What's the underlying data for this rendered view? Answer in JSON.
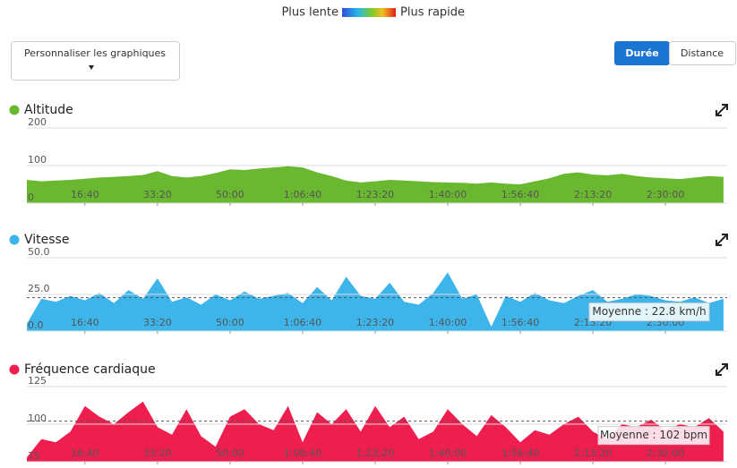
{
  "header": {
    "legend_slow": "Plus lente",
    "legend_fast": "Plus rapide",
    "customize": "Personnaliser les graphiques",
    "tabs": [
      "Durée",
      "Distance"
    ],
    "active_tab": 0
  },
  "chart_data": [
    {
      "type": "area",
      "title": "Altitude",
      "color": "#6ab830",
      "x": [
        200,
        400,
        600,
        800,
        1000,
        1200,
        1400,
        1600,
        1800,
        2000,
        2200,
        2400,
        2600,
        2800,
        3000,
        3200,
        3400,
        3600,
        3800,
        4000,
        4200,
        4400,
        4600,
        4800,
        5000,
        5200,
        5400,
        5600,
        5800,
        6000,
        6200,
        6400,
        6600,
        6800,
        7000,
        7200,
        7400,
        7600,
        7800,
        8000,
        8200,
        8400,
        8600,
        8800,
        9000,
        9200,
        9400,
        9600,
        9800
      ],
      "values": [
        62,
        58,
        60,
        62,
        65,
        68,
        70,
        72,
        75,
        85,
        72,
        68,
        72,
        80,
        90,
        88,
        92,
        95,
        98,
        95,
        82,
        72,
        60,
        55,
        58,
        62,
        60,
        58,
        56,
        55,
        54,
        52,
        55,
        52,
        50,
        58,
        66,
        78,
        82,
        76,
        74,
        78,
        72,
        68,
        66,
        64,
        68,
        72,
        70
      ],
      "xlim": [
        200,
        9850
      ],
      "ylim": [
        0,
        200
      ],
      "yticks": [
        0,
        100,
        200
      ],
      "grid": true,
      "xticks": [
        {
          "value": 1000,
          "label": "16:40"
        },
        {
          "value": 2000,
          "label": "33:20"
        },
        {
          "value": 3000,
          "label": "50:00"
        },
        {
          "value": 4000,
          "label": "1:06:40"
        },
        {
          "value": 5000,
          "label": "1:23:20"
        },
        {
          "value": 6000,
          "label": "1:40:00"
        },
        {
          "value": 7000,
          "label": "1:56:40"
        },
        {
          "value": 8000,
          "label": "2:13:20"
        },
        {
          "value": 9000,
          "label": "2:30:00"
        }
      ]
    },
    {
      "type": "area",
      "title": "Vitesse",
      "color": "#3db5ea",
      "x": [
        200,
        400,
        600,
        800,
        1000,
        1200,
        1400,
        1600,
        1800,
        2000,
        2200,
        2400,
        2600,
        2800,
        3000,
        3200,
        3400,
        3600,
        3800,
        4000,
        4200,
        4400,
        4600,
        4800,
        5000,
        5200,
        5400,
        5600,
        5800,
        6000,
        6200,
        6400,
        6600,
        6800,
        7000,
        7200,
        7400,
        7600,
        7800,
        8000,
        8200,
        8400,
        8600,
        8800,
        9000,
        9200,
        9400,
        9600,
        9800
      ],
      "values": [
        5,
        22,
        20,
        24,
        21,
        26,
        19,
        28,
        22,
        36,
        20,
        23,
        18,
        25,
        21,
        27,
        22,
        24,
        26,
        19,
        30,
        21,
        37,
        24,
        22,
        33,
        20,
        18,
        26,
        40,
        22,
        25,
        3,
        24,
        20,
        26,
        21,
        19,
        24,
        28,
        20,
        22,
        25,
        24,
        21,
        20,
        23,
        19,
        22
      ],
      "xlim": [
        200,
        9850
      ],
      "ylim": [
        0,
        50
      ],
      "yticks": [
        {
          "value": 0,
          "label": "0.0"
        },
        {
          "value": 25,
          "label": "25.0"
        },
        {
          "value": 50,
          "label": "50.0"
        }
      ],
      "grid": true,
      "xticks": [
        {
          "value": 1000,
          "label": "16:40"
        },
        {
          "value": 2000,
          "label": "33:20"
        },
        {
          "value": 3000,
          "label": "50:00"
        },
        {
          "value": 4000,
          "label": "1:06:40"
        },
        {
          "value": 5000,
          "label": "1:23:20"
        },
        {
          "value": 6000,
          "label": "1:40:00"
        },
        {
          "value": 7000,
          "label": "1:56:40"
        },
        {
          "value": 8000,
          "label": "2:13:20"
        },
        {
          "value": 9000,
          "label": "2:30:00"
        }
      ],
      "average": 22.8,
      "average_label": "Moyenne : 22.8 km/h"
    },
    {
      "type": "area",
      "title": "Fréquence cardiaque",
      "color": "#ee1f4f",
      "x": [
        200,
        400,
        600,
        800,
        1000,
        1200,
        1400,
        1600,
        1800,
        2000,
        2200,
        2400,
        2600,
        2800,
        3000,
        3200,
        3400,
        3600,
        3800,
        4000,
        4200,
        4400,
        4600,
        4800,
        5000,
        5200,
        5400,
        5600,
        5800,
        6000,
        6200,
        6400,
        6600,
        6800,
        7000,
        7200,
        7400,
        7600,
        7800,
        8000,
        8200,
        8400,
        8600,
        8800,
        9000,
        9200,
        9400,
        9600,
        9800
      ],
      "values": [
        78,
        90,
        88,
        95,
        112,
        105,
        100,
        108,
        115,
        98,
        93,
        110,
        92,
        85,
        105,
        110,
        100,
        96,
        112,
        88,
        108,
        100,
        110,
        95,
        112,
        98,
        105,
        90,
        95,
        110,
        100,
        92,
        106,
        98,
        88,
        96,
        93,
        100,
        105,
        95,
        90,
        100,
        98,
        103,
        96,
        100,
        98,
        104,
        95
      ],
      "xlim": [
        200,
        9850
      ],
      "ylim": [
        75,
        125
      ],
      "yticks": [
        75,
        100,
        125
      ],
      "grid": true,
      "xticks": [
        {
          "value": 1000,
          "label": "16:40"
        },
        {
          "value": 2000,
          "label": "33:20"
        },
        {
          "value": 3000,
          "label": "50:00"
        },
        {
          "value": 4000,
          "label": "1:06:40"
        },
        {
          "value": 5000,
          "label": "1:23:20"
        },
        {
          "value": 6000,
          "label": "1:40:00"
        },
        {
          "value": 7000,
          "label": "1:56:40"
        },
        {
          "value": 8000,
          "label": "2:13:20"
        },
        {
          "value": 9000,
          "label": "2:30:00"
        }
      ],
      "average": 102,
      "average_label": "Moyenne : 102 bpm"
    }
  ]
}
